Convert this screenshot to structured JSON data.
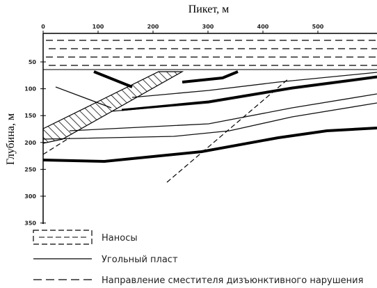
{
  "x_axis": {
    "title": "Пикет, м",
    "ticks": [
      "0",
      "100",
      "200",
      "300",
      "400",
      "500"
    ]
  },
  "y_axis": {
    "title": "Глубина, м",
    "ticks": [
      "50",
      "100",
      "150",
      "200",
      "250",
      "300",
      "350"
    ]
  },
  "legend": [
    "Наносы",
    "Угольный пласт",
    "Направление сместителя дизъюнктивного нарушения"
  ]
}
